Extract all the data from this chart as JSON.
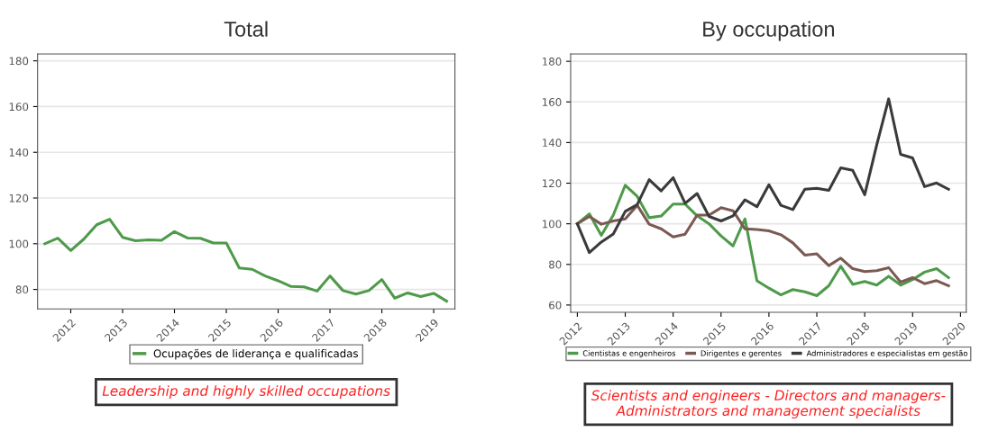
{
  "chart_data": [
    {
      "type": "line",
      "title": "Total",
      "x": [
        2011.5,
        2011.75,
        2012,
        2012.25,
        2012.5,
        2012.75,
        2013,
        2013.25,
        2013.5,
        2013.75,
        2014,
        2014.25,
        2014.5,
        2014.75,
        2015,
        2015.25,
        2015.5,
        2015.75,
        2016,
        2016.25,
        2016.5,
        2016.75,
        2017,
        2017.25,
        2017.5,
        2017.75,
        2018,
        2018.25,
        2018.5,
        2018.75,
        2019,
        2019.25
      ],
      "series": [
        {
          "name": "Ocupações de liderança e qualificadas",
          "color": "#4e9a4a",
          "values": [
            100,
            102.4,
            97,
            102,
            108.3,
            110.7,
            102.8,
            101.3,
            101.7,
            101.5,
            105.3,
            102.5,
            102.4,
            100.3,
            100.3,
            89.4,
            88.8,
            85.9,
            83.8,
            81.3,
            81.1,
            79.3,
            85.9,
            79.5,
            78,
            79.5,
            84.3,
            76.2,
            78.5,
            76.9,
            78.3,
            74.9
          ]
        }
      ],
      "xlim": [
        2011.36,
        2019.41
      ],
      "xticks": [
        2012,
        2013,
        2014,
        2015,
        2016,
        2017,
        2018,
        2019
      ],
      "ylim": [
        71.5,
        183
      ],
      "yticks": [
        80,
        100,
        120,
        140,
        160,
        180
      ],
      "grid": "y",
      "legend": "bottom",
      "annotations": [
        "Leadership and highly skilled occupations"
      ]
    },
    {
      "type": "line",
      "title": "By occupation",
      "x": [
        2012,
        2012.25,
        2012.5,
        2012.75,
        2013,
        2013.25,
        2013.5,
        2013.75,
        2014,
        2014.25,
        2014.5,
        2014.75,
        2015,
        2015.25,
        2015.5,
        2015.75,
        2016,
        2016.25,
        2016.5,
        2016.75,
        2017,
        2017.25,
        2017.5,
        2017.75,
        2018,
        2018.25,
        2018.5,
        2018.75,
        2019,
        2019.25,
        2019.5,
        2019.75
      ],
      "series": [
        {
          "name": "Cientistas e engenheiros",
          "color": "#4e9a4a",
          "values": [
            100,
            104.9,
            94.3,
            104.3,
            119,
            113.5,
            103,
            103.8,
            109.7,
            109.7,
            103.9,
            100,
            94,
            89.1,
            102.4,
            71.9,
            68.3,
            65,
            67.6,
            66.5,
            64.6,
            69.5,
            79.1,
            70.2,
            71.6,
            69.8,
            74.1,
            69.8,
            72.5,
            76.2,
            77.9,
            73.5
          ]
        },
        {
          "name": "Dirigentes e gerentes",
          "color": "#7a5a52",
          "values": [
            100,
            103.6,
            99.8,
            101.4,
            102.4,
            109.1,
            99.8,
            97.5,
            93.5,
            94.9,
            104.3,
            104.3,
            107.9,
            106.4,
            97.5,
            97.2,
            96.5,
            94.6,
            90.6,
            84.6,
            85.2,
            79.4,
            83.1,
            77.9,
            76.5,
            76.9,
            78.4,
            71.3,
            73.5,
            70.5,
            72,
            69.5
          ]
        },
        {
          "name": "Administradores e especialistas em gestão",
          "color": "#3a3a3a",
          "values": [
            100,
            85.8,
            91,
            95,
            106.1,
            109.4,
            121.7,
            116.2,
            122.7,
            110.1,
            114.9,
            103.6,
            101.4,
            103.9,
            111.8,
            108.4,
            119.2,
            109.1,
            107,
            117,
            117.5,
            116.5,
            127.5,
            126.3,
            114.3,
            138.8,
            161.5,
            134.2,
            132.4,
            118.3,
            120.1,
            117
          ]
        }
      ],
      "xlim": [
        2011.86,
        2020.12
      ],
      "xticks": [
        2012,
        2013,
        2014,
        2015,
        2016,
        2017,
        2018,
        2019,
        2020
      ],
      "ylim": [
        56.4,
        183.6
      ],
      "yticks": [
        60,
        80,
        100,
        120,
        140,
        160,
        180
      ],
      "grid": "y",
      "legend": "bottom",
      "annotations": [
        "Scientists and engineers - Directors and managers-\nAdministrators and management specialists"
      ]
    }
  ]
}
